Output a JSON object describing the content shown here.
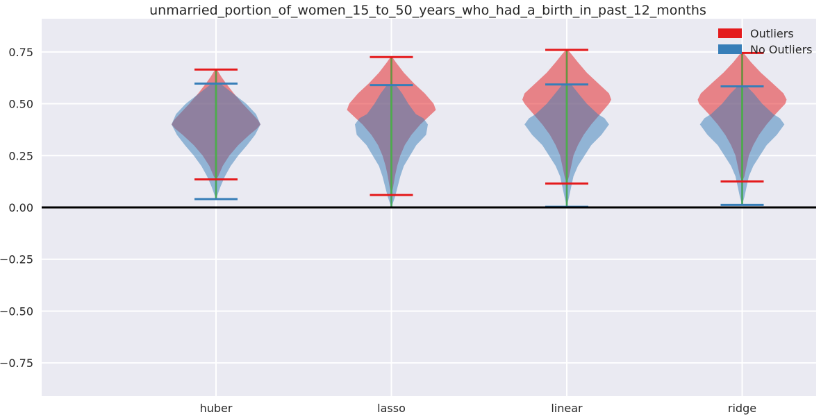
{
  "chart_data": {
    "type": "violin",
    "title": "unmarried_portion_of_women_15_to_50_years_who_had_a_birth_in_past_12_months",
    "xlabel": "",
    "ylabel": "",
    "categories": [
      "huber",
      "lasso",
      "linear",
      "ridge"
    ],
    "ylim": [
      -0.91,
      0.91
    ],
    "yticks": [
      -0.75,
      -0.5,
      -0.25,
      0.0,
      0.25,
      0.5,
      0.75
    ],
    "ytick_labels": [
      "−0.75",
      "−0.50",
      "−0.25",
      "0.00",
      "0.25",
      "0.50",
      "0.75"
    ],
    "zero_line": 0.0,
    "grid": true,
    "legend": {
      "position": "top-right"
    },
    "colors": {
      "background": "#eaeaf2",
      "grid": "#ffffff",
      "outliers": "#e41a1c",
      "no_outliers": "#377eb8",
      "median": "#4daf4a",
      "zero": "#000000"
    },
    "series": [
      {
        "name": "Outliers",
        "color": "#e41a1c",
        "violins": [
          {
            "category": "huber",
            "min": 0.135,
            "max": 0.665,
            "median": 0.4,
            "profile": [
              [
                0.135,
                0.0
              ],
              [
                0.15,
                0.05
              ],
              [
                0.2,
                0.15
              ],
              [
                0.25,
                0.3
              ],
              [
                0.3,
                0.5
              ],
              [
                0.35,
                0.75
              ],
              [
                0.38,
                0.92
              ],
              [
                0.4,
                1.0
              ],
              [
                0.42,
                0.95
              ],
              [
                0.45,
                0.82
              ],
              [
                0.5,
                0.6
              ],
              [
                0.55,
                0.4
              ],
              [
                0.6,
                0.22
              ],
              [
                0.63,
                0.12
              ],
              [
                0.665,
                0.02
              ]
            ]
          },
          {
            "category": "lasso",
            "min": 0.06,
            "max": 0.725,
            "median": 0.5,
            "profile": [
              [
                0.06,
                0.0
              ],
              [
                0.1,
                0.04
              ],
              [
                0.15,
                0.08
              ],
              [
                0.2,
                0.13
              ],
              [
                0.25,
                0.2
              ],
              [
                0.3,
                0.3
              ],
              [
                0.35,
                0.45
              ],
              [
                0.4,
                0.65
              ],
              [
                0.44,
                0.85
              ],
              [
                0.47,
                1.0
              ],
              [
                0.5,
                0.95
              ],
              [
                0.55,
                0.75
              ],
              [
                0.6,
                0.5
              ],
              [
                0.65,
                0.28
              ],
              [
                0.7,
                0.1
              ],
              [
                0.725,
                0.02
              ]
            ]
          },
          {
            "category": "linear",
            "min": 0.115,
            "max": 0.76,
            "median": 0.5,
            "profile": [
              [
                0.115,
                0.0
              ],
              [
                0.15,
                0.05
              ],
              [
                0.2,
                0.1
              ],
              [
                0.25,
                0.15
              ],
              [
                0.3,
                0.25
              ],
              [
                0.35,
                0.38
              ],
              [
                0.4,
                0.55
              ],
              [
                0.45,
                0.75
              ],
              [
                0.5,
                0.95
              ],
              [
                0.52,
                1.0
              ],
              [
                0.55,
                0.95
              ],
              [
                0.6,
                0.7
              ],
              [
                0.65,
                0.45
              ],
              [
                0.7,
                0.25
              ],
              [
                0.74,
                0.1
              ],
              [
                0.76,
                0.02
              ]
            ]
          },
          {
            "category": "ridge",
            "min": 0.125,
            "max": 0.745,
            "median": 0.5,
            "profile": [
              [
                0.125,
                0.0
              ],
              [
                0.15,
                0.05
              ],
              [
                0.2,
                0.1
              ],
              [
                0.25,
                0.15
              ],
              [
                0.3,
                0.25
              ],
              [
                0.35,
                0.38
              ],
              [
                0.4,
                0.55
              ],
              [
                0.45,
                0.75
              ],
              [
                0.5,
                0.97
              ],
              [
                0.52,
                1.0
              ],
              [
                0.55,
                0.93
              ],
              [
                0.6,
                0.68
              ],
              [
                0.65,
                0.42
              ],
              [
                0.7,
                0.2
              ],
              [
                0.745,
                0.03
              ]
            ]
          }
        ]
      },
      {
        "name": "No Outliers",
        "color": "#377eb8",
        "violins": [
          {
            "category": "huber",
            "min": 0.04,
            "max": 0.597,
            "median": 0.4,
            "profile": [
              [
                0.04,
                0.0
              ],
              [
                0.1,
                0.1
              ],
              [
                0.15,
                0.2
              ],
              [
                0.2,
                0.33
              ],
              [
                0.25,
                0.5
              ],
              [
                0.3,
                0.7
              ],
              [
                0.35,
                0.88
              ],
              [
                0.4,
                1.0
              ],
              [
                0.45,
                0.9
              ],
              [
                0.5,
                0.68
              ],
              [
                0.55,
                0.38
              ],
              [
                0.597,
                0.1
              ]
            ]
          },
          {
            "category": "lasso",
            "min": 0.0,
            "max": 0.59,
            "median": 0.4,
            "profile": [
              [
                0.0,
                0.0
              ],
              [
                0.05,
                0.08
              ],
              [
                0.1,
                0.14
              ],
              [
                0.15,
                0.2
              ],
              [
                0.2,
                0.28
              ],
              [
                0.25,
                0.42
              ],
              [
                0.3,
                0.56
              ],
              [
                0.35,
                0.78
              ],
              [
                0.4,
                0.82
              ],
              [
                0.43,
                0.72
              ],
              [
                0.45,
                0.55
              ],
              [
                0.5,
                0.38
              ],
              [
                0.55,
                0.24
              ],
              [
                0.59,
                0.1
              ]
            ]
          },
          {
            "category": "linear",
            "min": 0.003,
            "max": 0.593,
            "median": 0.4,
            "profile": [
              [
                0.003,
                0.0
              ],
              [
                0.05,
                0.05
              ],
              [
                0.1,
                0.1
              ],
              [
                0.15,
                0.15
              ],
              [
                0.2,
                0.25
              ],
              [
                0.25,
                0.4
              ],
              [
                0.3,
                0.55
              ],
              [
                0.35,
                0.78
              ],
              [
                0.4,
                0.95
              ],
              [
                0.43,
                0.85
              ],
              [
                0.45,
                0.7
              ],
              [
                0.5,
                0.45
              ],
              [
                0.55,
                0.26
              ],
              [
                0.593,
                0.1
              ]
            ]
          },
          {
            "category": "ridge",
            "min": 0.012,
            "max": 0.584,
            "median": 0.4,
            "profile": [
              [
                0.012,
                0.0
              ],
              [
                0.05,
                0.05
              ],
              [
                0.1,
                0.1
              ],
              [
                0.15,
                0.15
              ],
              [
                0.2,
                0.25
              ],
              [
                0.25,
                0.4
              ],
              [
                0.3,
                0.55
              ],
              [
                0.35,
                0.78
              ],
              [
                0.4,
                0.95
              ],
              [
                0.43,
                0.85
              ],
              [
                0.45,
                0.7
              ],
              [
                0.5,
                0.45
              ],
              [
                0.55,
                0.26
              ],
              [
                0.584,
                0.1
              ]
            ]
          }
        ]
      }
    ]
  }
}
